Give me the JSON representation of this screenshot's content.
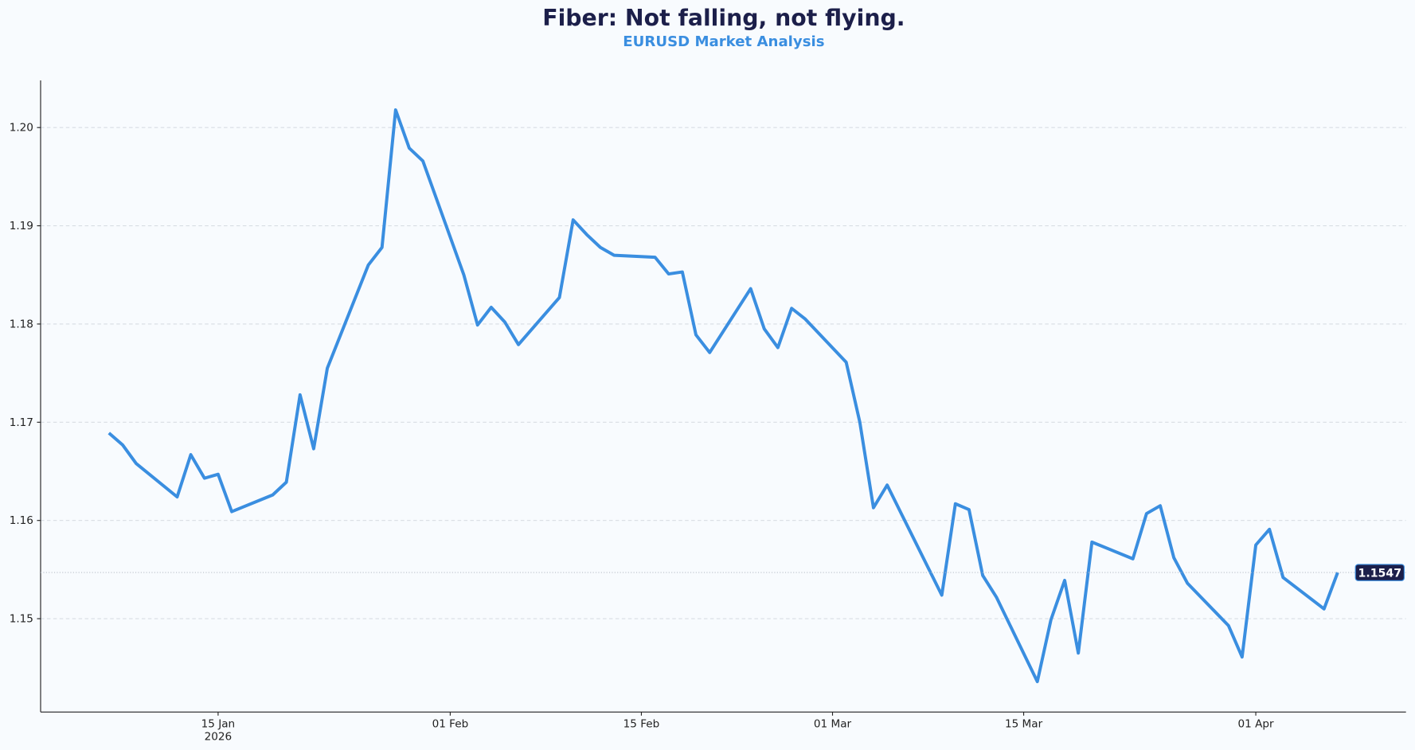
{
  "chart_data": {
    "type": "line",
    "title": "Fiber: Not falling, not flying.",
    "subtitle": "EURUSD Market Analysis",
    "x": [
      "2026-01-07",
      "2026-01-08",
      "2026-01-09",
      "2026-01-12",
      "2026-01-13",
      "2026-01-14",
      "2026-01-15",
      "2026-01-16",
      "2026-01-19",
      "2026-01-20",
      "2026-01-21",
      "2026-01-22",
      "2026-01-23",
      "2026-01-26",
      "2026-01-27",
      "2026-01-28",
      "2026-01-29",
      "2026-01-30",
      "2026-02-02",
      "2026-02-03",
      "2026-02-04",
      "2026-02-05",
      "2026-02-06",
      "2026-02-09",
      "2026-02-10",
      "2026-02-11",
      "2026-02-12",
      "2026-02-13",
      "2026-02-16",
      "2026-02-17",
      "2026-02-18",
      "2026-02-19",
      "2026-02-20",
      "2026-02-23",
      "2026-02-24",
      "2026-02-25",
      "2026-02-26",
      "2026-02-27",
      "2026-03-02",
      "2026-03-03",
      "2026-03-04",
      "2026-03-05",
      "2026-03-06",
      "2026-03-09",
      "2026-03-10",
      "2026-03-11",
      "2026-03-12",
      "2026-03-13",
      "2026-03-16",
      "2026-03-17",
      "2026-03-18",
      "2026-03-19",
      "2026-03-20",
      "2026-03-23",
      "2026-03-24",
      "2026-03-25",
      "2026-03-26",
      "2026-03-27",
      "2026-03-30",
      "2026-03-31",
      "2026-04-01",
      "2026-04-02",
      "2026-04-03",
      "2026-04-06",
      "2026-04-07"
    ],
    "series": [
      {
        "name": "EURUSD",
        "color": "#3a8ee0",
        "values": [
          1.1689,
          1.1677,
          1.1658,
          1.1624,
          1.1667,
          1.1643,
          1.1647,
          1.1609,
          1.1626,
          1.1639,
          1.1728,
          1.1673,
          1.1755,
          1.186,
          1.1878,
          1.2018,
          1.1979,
          1.1966,
          1.185,
          1.1799,
          1.1817,
          1.1802,
          1.1779,
          1.1827,
          1.1906,
          1.1891,
          1.1878,
          1.187,
          1.1868,
          1.1851,
          1.1853,
          1.1789,
          1.1771,
          1.1836,
          1.1795,
          1.1776,
          1.1816,
          1.1805,
          1.1761,
          1.17,
          1.1613,
          1.1636,
          1.1608,
          1.1524,
          1.1617,
          1.1611,
          1.1544,
          1.1522,
          1.1436,
          1.1499,
          1.1539,
          1.1465,
          1.1578,
          1.1561,
          1.1607,
          1.1615,
          1.1562,
          1.1536,
          1.1493,
          1.1461,
          1.1575,
          1.1591,
          1.1542,
          1.151,
          1.1547
        ]
      }
    ],
    "xlim": [
      "2026-01-02",
      "2026-04-12"
    ],
    "xticks": [
      {
        "value": "2026-01-15",
        "label": "15 Jan\n2026"
      },
      {
        "value": "2026-02-01",
        "label": "01 Feb"
      },
      {
        "value": "2026-02-15",
        "label": "15 Feb"
      },
      {
        "value": "2026-03-01",
        "label": "01 Mar"
      },
      {
        "value": "2026-03-15",
        "label": "15 Mar"
      },
      {
        "value": "2026-04-01",
        "label": "01 Apr"
      }
    ],
    "ylim": [
      1.1405,
      1.2048
    ],
    "yticks": [
      1.15,
      1.16,
      1.17,
      1.18,
      1.19,
      {
        "value": 1.2,
        "label": "1.20"
      }
    ],
    "grid": true
  }
}
